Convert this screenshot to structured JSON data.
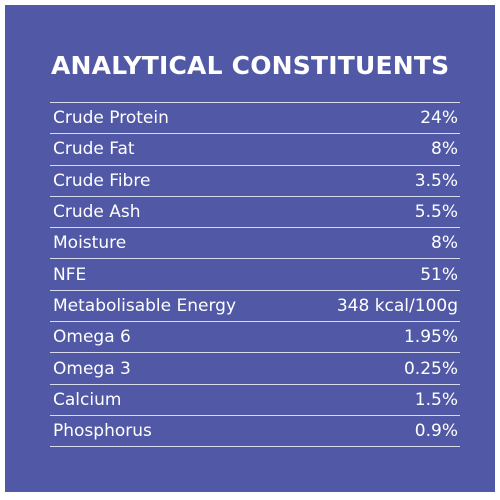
{
  "title": "ANALYTICAL CONSTITUENTS",
  "colors": {
    "background": "#5159a6",
    "text": "#ffffff",
    "rule": "#d8dbee"
  },
  "rows": [
    {
      "label": "Crude Protein",
      "value": "24%"
    },
    {
      "label": "Crude Fat",
      "value": "8%"
    },
    {
      "label": "Crude Fibre",
      "value": "3.5%"
    },
    {
      "label": "Crude Ash",
      "value": "5.5%"
    },
    {
      "label": "Moisture",
      "value": "8%"
    },
    {
      "label": "NFE",
      "value": "51%"
    },
    {
      "label": "Metabolisable Energy",
      "value": "348 kcal/100g"
    },
    {
      "label": "Omega 6",
      "value": "1.95%"
    },
    {
      "label": "Omega 3",
      "value": "0.25%"
    },
    {
      "label": "Calcium",
      "value": "1.5%"
    },
    {
      "label": "Phosphorus",
      "value": "0.9%"
    }
  ]
}
